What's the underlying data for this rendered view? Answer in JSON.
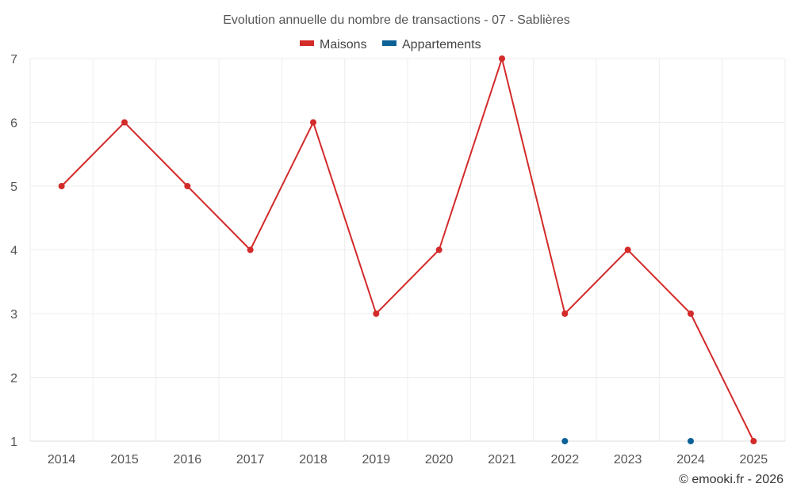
{
  "chart_data": {
    "type": "line",
    "title": "Evolution annuelle du nombre de transactions - 07 - Sablières",
    "xlabel": "",
    "ylabel": "",
    "categories": [
      "2014",
      "2015",
      "2016",
      "2017",
      "2018",
      "2019",
      "2020",
      "2021",
      "2022",
      "2023",
      "2024",
      "2025"
    ],
    "ylim": [
      1,
      7
    ],
    "yticks": [
      "1",
      "2",
      "3",
      "4",
      "5",
      "6",
      "7"
    ],
    "grid": true,
    "legend_position": "top-center",
    "series": [
      {
        "name": "Maisons",
        "color": "#d32a2a",
        "values": [
          5,
          6,
          5,
          4,
          6,
          3,
          4,
          7,
          3,
          4,
          3,
          1
        ]
      },
      {
        "name": "Appartements",
        "color": "#0c6297",
        "values": [
          null,
          null,
          null,
          null,
          null,
          null,
          null,
          null,
          1,
          null,
          1,
          null
        ]
      }
    ]
  },
  "credit": "© emooki.fr - 2026"
}
